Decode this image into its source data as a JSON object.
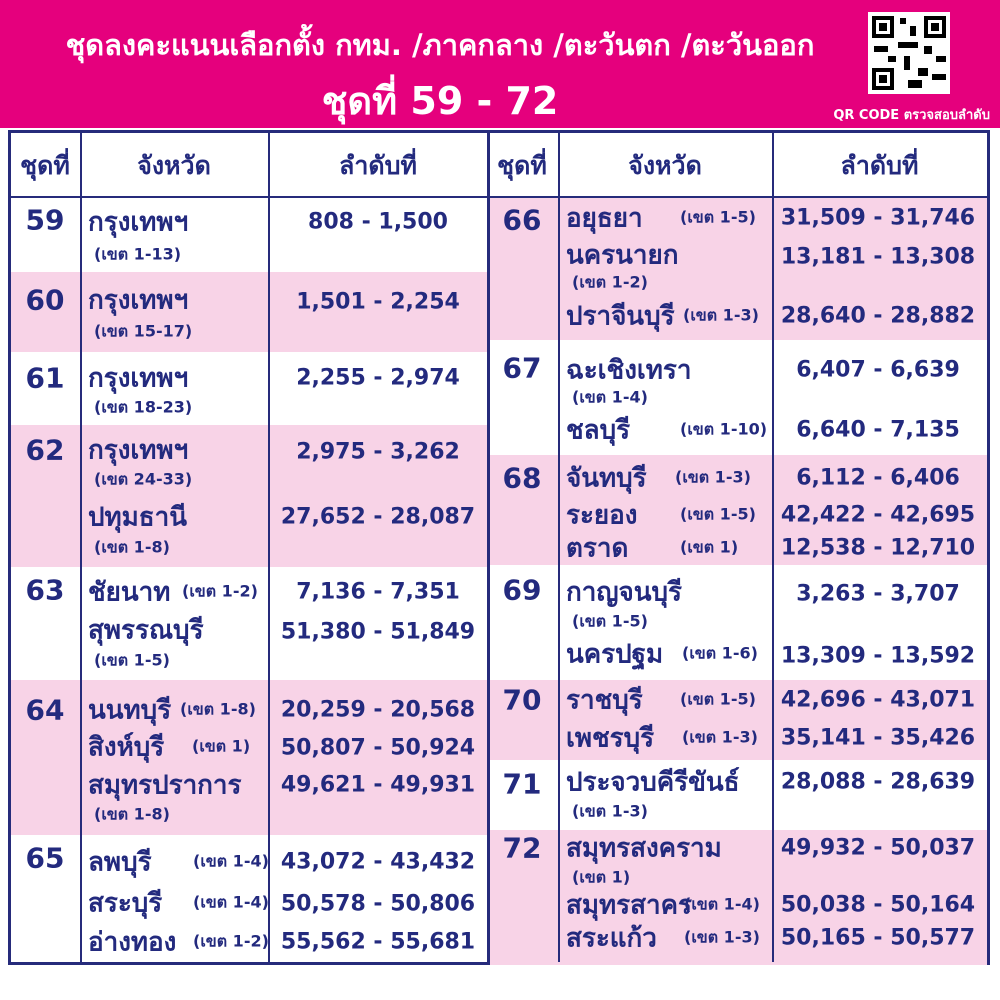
{
  "header": {
    "title": "ชุดลงคะแนนเลือกตั้ง กทม. /ภาคกลาง /ตะวันตก /ตะวันออก",
    "subtitle": "ชุดที่ 59 - 72",
    "qr_caption": "QR CODE ตรวจสอบลำดับ"
  },
  "table": {
    "halves": [
      {
        "headers": [
          "ชุดที่",
          "จังหวัด",
          "ลำดับที่"
        ],
        "groups": [
          {
            "set": "59",
            "entries": [
              {
                "province": "กรุงเทพฯ",
                "district": "(เขต 1-13)",
                "range": "808 - 1,500"
              }
            ]
          },
          {
            "set": "60",
            "entries": [
              {
                "province": "กรุงเทพฯ",
                "district": "(เขต 15-17)",
                "range": "1,501 - 2,254"
              }
            ]
          },
          {
            "set": "61",
            "entries": [
              {
                "province": "กรุงเทพฯ",
                "district": "(เขต 18-23)",
                "range": "2,255 - 2,974"
              }
            ]
          },
          {
            "set": "62",
            "entries": [
              {
                "province": "กรุงเทพฯ",
                "district": "(เขต 24-33)",
                "range": "2,975 - 3,262"
              },
              {
                "province": "ปทุมธานี",
                "district": "(เขต 1-8)",
                "range": "27,652 - 28,087"
              }
            ]
          },
          {
            "set": "63",
            "entries": [
              {
                "province": "ชัยนาท",
                "district": "(เขต 1-2)",
                "range": "7,136 - 7,351"
              },
              {
                "province": "สุพรรณบุรี",
                "district": "(เขต 1-5)",
                "range": "51,380 - 51,849"
              }
            ]
          },
          {
            "set": "64",
            "entries": [
              {
                "province": "นนทบุรี",
                "district": "(เขต 1-8)",
                "range": "20,259 - 20,568"
              },
              {
                "province": "สิงห์บุรี",
                "district": "(เขต 1)",
                "range": "50,807 - 50,924"
              },
              {
                "province": "สมุทรปราการ",
                "district": "(เขต 1-8)",
                "range": "49,621 - 49,931"
              }
            ]
          },
          {
            "set": "65",
            "entries": [
              {
                "province": "ลพบุรี",
                "district": "(เขต 1-4)",
                "range": "43,072 - 43,432"
              },
              {
                "province": "สระบุรี",
                "district": "(เขต 1-4)",
                "range": "50,578 - 50,806"
              },
              {
                "province": "อ่างทอง",
                "district": "(เขต 1-2)",
                "range": "55,562 - 55,681"
              }
            ]
          }
        ]
      },
      {
        "headers": [
          "ชุดที่",
          "จังหวัด",
          "ลำดับที่"
        ],
        "groups": [
          {
            "set": "66",
            "entries": [
              {
                "province": "อยุธยา",
                "district": "(เขต 1-5)",
                "range": "31,509 - 31,746"
              },
              {
                "province": "นครนายก",
                "district": "(เขต 1-2)",
                "range": "13,181 - 13,308"
              },
              {
                "province": "ปราจีนบุรี",
                "district": "(เขต 1-3)",
                "range": "28,640 - 28,882"
              }
            ]
          },
          {
            "set": "67",
            "entries": [
              {
                "province": "ฉะเชิงเทรา",
                "district": "(เขต 1-4)",
                "range": "6,407 - 6,639"
              },
              {
                "province": "ชลบุรี",
                "district": "(เขต 1-10)",
                "range": "6,640 - 7,135"
              }
            ]
          },
          {
            "set": "68",
            "entries": [
              {
                "province": "จันทบุรี",
                "district": "(เขต 1-3)",
                "range": "6,112 - 6,406"
              },
              {
                "province": "ระยอง",
                "district": "(เขต 1-5)",
                "range": "42,422 - 42,695"
              },
              {
                "province": "ตราด",
                "district": "(เขต 1)",
                "range": "12,538 - 12,710"
              }
            ]
          },
          {
            "set": "69",
            "entries": [
              {
                "province": "กาญจนบุรี",
                "district": "(เขต 1-5)",
                "range": "3,263 - 3,707"
              },
              {
                "province": "นครปฐม",
                "district": "(เขต 1-6)",
                "range": "13,309 - 13,592"
              }
            ]
          },
          {
            "set": "70",
            "entries": [
              {
                "province": "ราชบุรี",
                "district": "(เขต 1-5)",
                "range": "42,696 - 43,071"
              },
              {
                "province": "เพชรบุรี",
                "district": "(เขต 1-3)",
                "range": "35,141 - 35,426"
              }
            ]
          },
          {
            "set": "71",
            "entries": [
              {
                "province": "ประจวบคีรีขันธ์",
                "district": "(เขต 1-3)",
                "range": "28,088 - 28,639"
              }
            ]
          },
          {
            "set": "72",
            "entries": [
              {
                "province": "สมุทรสงคราม",
                "district": "(เขต 1)",
                "range": "49,932 - 50,037"
              },
              {
                "province": "สมุทรสาคร",
                "district": "(เขต 1-4)",
                "range": "50,038 - 50,164"
              },
              {
                "province": "สระแก้ว",
                "district": "(เขต 1-3)",
                "range": "50,165 - 50,577"
              }
            ]
          }
        ]
      }
    ]
  }
}
